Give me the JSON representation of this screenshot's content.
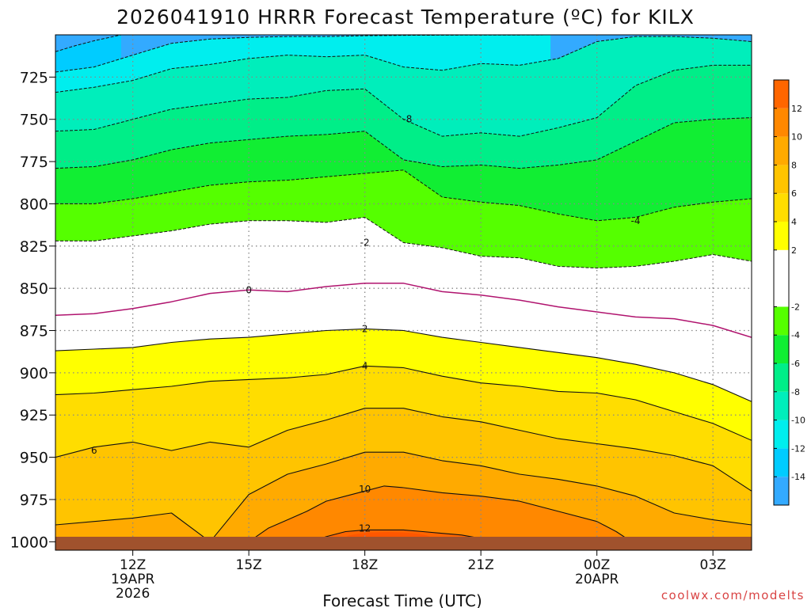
{
  "chart_data": {
    "type": "filled_contour",
    "title": "2026041910 HRRR Forecast Temperature (ºC) for KILX",
    "xlabel": "Forecast Time (UTC)",
    "ylabel": "",
    "credit": "coolwx.com/modelts",
    "x_range_hours": [
      10,
      28
    ],
    "y_range_hpa": [
      1005,
      700
    ],
    "y_inverted": true,
    "x_ticks": [
      {
        "h": 12,
        "label": "12Z",
        "sub": [
          "19APR",
          "2026"
        ]
      },
      {
        "h": 15,
        "label": "15Z",
        "sub": []
      },
      {
        "h": 18,
        "label": "18Z",
        "sub": []
      },
      {
        "h": 21,
        "label": "21Z",
        "sub": []
      },
      {
        "h": 24,
        "label": "00Z",
        "sub": [
          "20APR"
        ]
      },
      {
        "h": 27,
        "label": "03Z",
        "sub": []
      }
    ],
    "y_ticks": [
      725,
      750,
      775,
      800,
      825,
      850,
      875,
      900,
      925,
      950,
      975,
      1000
    ],
    "ground_pressure": 1000,
    "colorbar": {
      "min": -16,
      "max": 14,
      "band_colors": [
        {
          "lo": -16,
          "hi": -14,
          "color": "#33aaff"
        },
        {
          "lo": -14,
          "hi": -12,
          "color": "#00ccff"
        },
        {
          "lo": -12,
          "hi": -10,
          "color": "#00eeee"
        },
        {
          "lo": -10,
          "hi": -8,
          "color": "#00eebb"
        },
        {
          "lo": -8,
          "hi": -6,
          "color": "#00ee88"
        },
        {
          "lo": -6,
          "hi": -4,
          "color": "#11ee33"
        },
        {
          "lo": -4,
          "hi": -2,
          "color": "#55ff00"
        },
        {
          "lo": -2,
          "hi": 2,
          "color": "#ffffff"
        },
        {
          "lo": 2,
          "hi": 4,
          "color": "#ffff00"
        },
        {
          "lo": 4,
          "hi": 6,
          "color": "#ffdd00"
        },
        {
          "lo": 6,
          "hi": 8,
          "color": "#ffc400"
        },
        {
          "lo": 8,
          "hi": 10,
          "color": "#ffaa00"
        },
        {
          "lo": 10,
          "hi": 12,
          "color": "#ff8800"
        },
        {
          "lo": 12,
          "hi": 14,
          "color": "#ff6600"
        }
      ],
      "tick_labels": [
        12,
        10,
        8,
        6,
        4,
        2,
        -2,
        -4,
        -6,
        -8,
        -10,
        -12,
        -14
      ]
    },
    "contour_labels": [
      {
        "value": "-8",
        "h": 19.1,
        "p": 750
      },
      {
        "value": "-4",
        "h": 25.0,
        "p": 810
      },
      {
        "value": "-2",
        "h": 18.0,
        "p": 823
      },
      {
        "value": "0",
        "h": 15.0,
        "p": 851
      },
      {
        "value": "2",
        "h": 18.0,
        "p": 874
      },
      {
        "value": "4",
        "h": 18.0,
        "p": 896
      },
      {
        "value": "6",
        "h": 11.0,
        "p": 946
      },
      {
        "value": "10",
        "h": 18.0,
        "p": 969
      },
      {
        "value": "12",
        "h": 18.0,
        "p": 992
      }
    ],
    "series": [
      {
        "name": "-14",
        "x": [
          10.0,
          10.5,
          11.0,
          11.4,
          11.7
        ],
        "y": [
          710.0,
          706.5,
          703.5,
          701.5,
          700.0
        ]
      },
      {
        "name": "-12",
        "x": [
          10.0,
          11.0,
          12.0,
          13.0,
          14.0,
          15.0,
          16.0,
          17.0,
          18.0,
          19.0,
          20.0,
          21.0,
          22.0,
          22.8
        ],
        "y": [
          722,
          719,
          712,
          705,
          702.5,
          701.5,
          701.0,
          701.0,
          700.5,
          700.3,
          700.2,
          700.1,
          700.1,
          700.0
        ]
      },
      {
        "name": "-10",
        "x": [
          10.0,
          11.0,
          12.0,
          13.0,
          14.0,
          15.0,
          16.0,
          17.0,
          18.0,
          19.0,
          20.0,
          21.0,
          22.0,
          23.0,
          24.0,
          25.0,
          26.0,
          27.0,
          28.0
        ],
        "y": [
          734,
          731,
          727,
          720,
          717.5,
          714,
          712,
          713,
          712,
          719,
          721,
          717,
          718,
          714,
          704,
          701,
          701,
          702,
          704
        ]
      },
      {
        "name": "-8",
        "x": [
          10.0,
          11.0,
          12.0,
          13.0,
          14.0,
          15.0,
          16.0,
          17.0,
          18.0,
          19.0,
          20.0,
          21.0,
          22.0,
          23.0,
          24.0,
          25.0,
          26.0,
          27.0,
          28.0
        ],
        "y": [
          757,
          756,
          750,
          744,
          741,
          738,
          737,
          733,
          732,
          750,
          760,
          758,
          760,
          755,
          749,
          730,
          721,
          718,
          718
        ]
      },
      {
        "name": "-6",
        "x": [
          10.0,
          11.0,
          12.0,
          13.0,
          14.0,
          15.0,
          16.0,
          17.0,
          18.0,
          19.0,
          20.0,
          21.0,
          22.0,
          23.0,
          24.0,
          25.0,
          26.0,
          27.0,
          28.0
        ],
        "y": [
          779,
          778,
          774,
          768,
          764,
          762,
          760,
          759,
          757,
          774,
          778,
          777,
          779,
          777,
          774,
          763,
          752,
          750,
          749
        ]
      },
      {
        "name": "-4",
        "x": [
          10.0,
          11.0,
          12.0,
          13.0,
          14.0,
          15.0,
          16.0,
          17.0,
          18.0,
          19.0,
          20.0,
          21.0,
          22.0,
          23.0,
          24.0,
          25.0,
          26.0,
          27.0,
          28.0
        ],
        "y": [
          800,
          800,
          797,
          793,
          789,
          787,
          786,
          784,
          782,
          780,
          796,
          799,
          801,
          806,
          810,
          808,
          802,
          799,
          797
        ]
      },
      {
        "name": "-2",
        "x": [
          10.0,
          11.0,
          12.0,
          13.0,
          14.0,
          15.0,
          16.0,
          17.0,
          18.0,
          19.0,
          20.0,
          21.0,
          22.0,
          23.0,
          24.0,
          25.0,
          26.0,
          27.0,
          28.0
        ],
        "y": [
          822,
          822,
          819,
          816,
          812,
          810,
          810,
          811,
          808,
          823,
          826,
          831,
          832,
          837,
          838,
          837,
          834,
          830,
          834
        ]
      },
      {
        "name": "0",
        "x": [
          10.0,
          11.0,
          12.0,
          13.0,
          14.0,
          15.0,
          16.0,
          17.0,
          18.0,
          19.0,
          20.0,
          21.0,
          22.0,
          23.0,
          24.0,
          25.0,
          26.0,
          27.0,
          28.0
        ],
        "y": [
          866,
          865,
          862,
          858,
          853,
          851,
          852,
          849,
          847,
          847,
          852,
          854,
          857,
          861,
          864,
          867,
          868,
          872,
          879
        ]
      },
      {
        "name": "2",
        "x": [
          10.0,
          11.0,
          12.0,
          13.0,
          14.0,
          15.0,
          16.0,
          17.0,
          18.0,
          19.0,
          20.0,
          21.0,
          22.0,
          23.0,
          24.0,
          25.0,
          26.0,
          27.0,
          28.0
        ],
        "y": [
          887,
          886,
          885,
          882,
          880,
          879,
          877,
          875,
          874,
          875,
          879,
          882,
          885,
          888,
          891,
          895,
          900,
          907,
          917
        ]
      },
      {
        "name": "4",
        "x": [
          10.0,
          11.0,
          12.0,
          13.0,
          14.0,
          15.0,
          16.0,
          17.0,
          18.0,
          19.0,
          20.0,
          21.0,
          22.0,
          23.0,
          24.0,
          25.0,
          26.0,
          27.0,
          28.0
        ],
        "y": [
          913,
          912,
          910,
          908,
          905,
          904,
          903,
          901,
          896,
          897,
          902,
          906,
          908,
          911,
          912,
          916,
          923,
          930,
          940
        ]
      },
      {
        "name": "6",
        "x": [
          10.0,
          11.0,
          12.0,
          13.0,
          14.0,
          15.0,
          16.0,
          17.0,
          18.0,
          19.0,
          20.0,
          21.0,
          22.0,
          23.0,
          24.0,
          25.0,
          26.0,
          27.0,
          28.0
        ],
        "y": [
          950,
          944,
          941,
          946,
          941,
          944,
          934,
          928,
          921,
          921,
          926,
          929,
          934,
          939,
          942,
          945,
          949,
          955,
          970
        ]
      },
      {
        "name": "8",
        "x": [
          10.0,
          11.0,
          12.0,
          13.0,
          14.0,
          15.0,
          16.0,
          17.0,
          18.0,
          19.0,
          20.0,
          21.0,
          22.0,
          23.0,
          24.0,
          25.0,
          26.0,
          27.0,
          28.0
        ],
        "y": [
          990,
          988,
          986,
          983,
          1000,
          972,
          960,
          954,
          947,
          947,
          952,
          955,
          960,
          963,
          967,
          973,
          983,
          987,
          990
        ]
      },
      {
        "name": "10",
        "x": [
          15.0,
          15.5,
          16.0,
          16.5,
          17.0,
          17.5,
          18.0,
          18.5,
          19.0,
          20.0,
          21.0,
          22.0,
          23.0,
          24.0,
          24.5,
          24.9
        ],
        "y": [
          1000,
          992,
          987,
          982,
          976,
          973,
          970,
          967,
          968,
          971,
          973,
          976,
          982,
          988,
          994,
          1000
        ]
      },
      {
        "name": "12",
        "x": [
          16.6,
          17.0,
          17.5,
          18.0,
          18.5,
          19.0,
          19.5,
          20.0,
          20.5,
          21.0,
          21.5,
          22.0
        ],
        "y": [
          1000,
          997,
          994,
          993,
          993,
          993,
          994,
          995,
          996,
          998,
          999,
          1000
        ]
      }
    ]
  }
}
